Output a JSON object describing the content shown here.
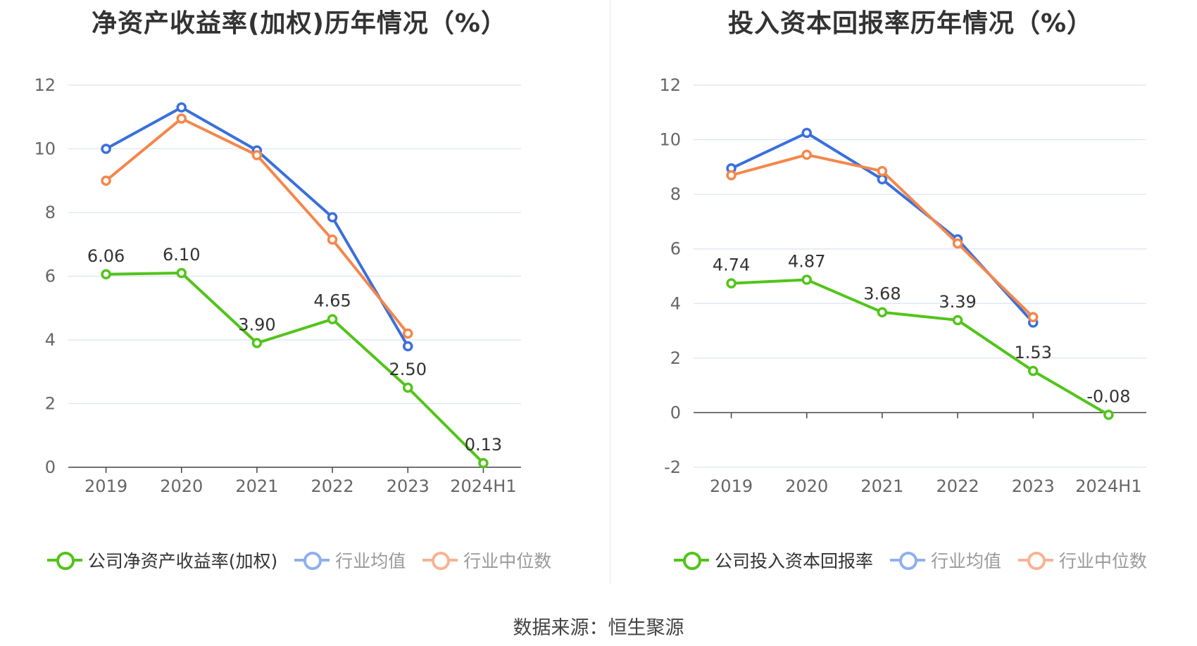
{
  "colors": {
    "company": "#52c41a",
    "average": "#3a6fdc",
    "median": "#f4874b",
    "average_legend": "#8fb0ee",
    "median_legend": "#f7b394",
    "grid": "#dde3f5",
    "axis": "#444444"
  },
  "source": "数据来源：恒生聚源",
  "chart_data": [
    {
      "type": "line",
      "title": "净资产收益率(加权)历年情况（%）",
      "categories": [
        "2019",
        "2020",
        "2021",
        "2022",
        "2023",
        "2024H1"
      ],
      "ylim": [
        0,
        12
      ],
      "yticks": [
        0,
        2,
        4,
        6,
        8,
        10,
        12
      ],
      "grid": true,
      "legend_position": "bottom",
      "series": [
        {
          "name": "公司净资产收益率(加权)",
          "key": "company",
          "values": [
            6.06,
            6.1,
            3.9,
            4.65,
            2.5,
            0.13
          ],
          "labels": [
            "6.06",
            "6.10",
            "3.90",
            "4.65",
            "2.50",
            "0.13"
          ]
        },
        {
          "name": "行业均值",
          "key": "average",
          "values": [
            10.0,
            11.3,
            9.95,
            7.85,
            3.8,
            null
          ]
        },
        {
          "name": "行业中位数",
          "key": "median",
          "values": [
            9.0,
            10.95,
            9.8,
            7.15,
            4.2,
            null
          ]
        }
      ]
    },
    {
      "type": "line",
      "title": "投入资本回报率历年情况（%）",
      "categories": [
        "2019",
        "2020",
        "2021",
        "2022",
        "2023",
        "2024H1"
      ],
      "ylim": [
        -2,
        12
      ],
      "yticks": [
        -2,
        0,
        2,
        4,
        6,
        8,
        10,
        12
      ],
      "grid": true,
      "legend_position": "bottom",
      "series": [
        {
          "name": "公司投入资本回报率",
          "key": "company",
          "values": [
            4.74,
            4.87,
            3.68,
            3.39,
            1.53,
            -0.08
          ],
          "labels": [
            "4.74",
            "4.87",
            "3.68",
            "3.39",
            "1.53",
            "-0.08"
          ]
        },
        {
          "name": "行业均值",
          "key": "average",
          "values": [
            8.95,
            10.25,
            8.55,
            6.35,
            3.3,
            null
          ]
        },
        {
          "name": "行业中位数",
          "key": "median",
          "values": [
            8.7,
            9.45,
            8.85,
            6.2,
            3.5,
            null
          ]
        }
      ]
    }
  ]
}
